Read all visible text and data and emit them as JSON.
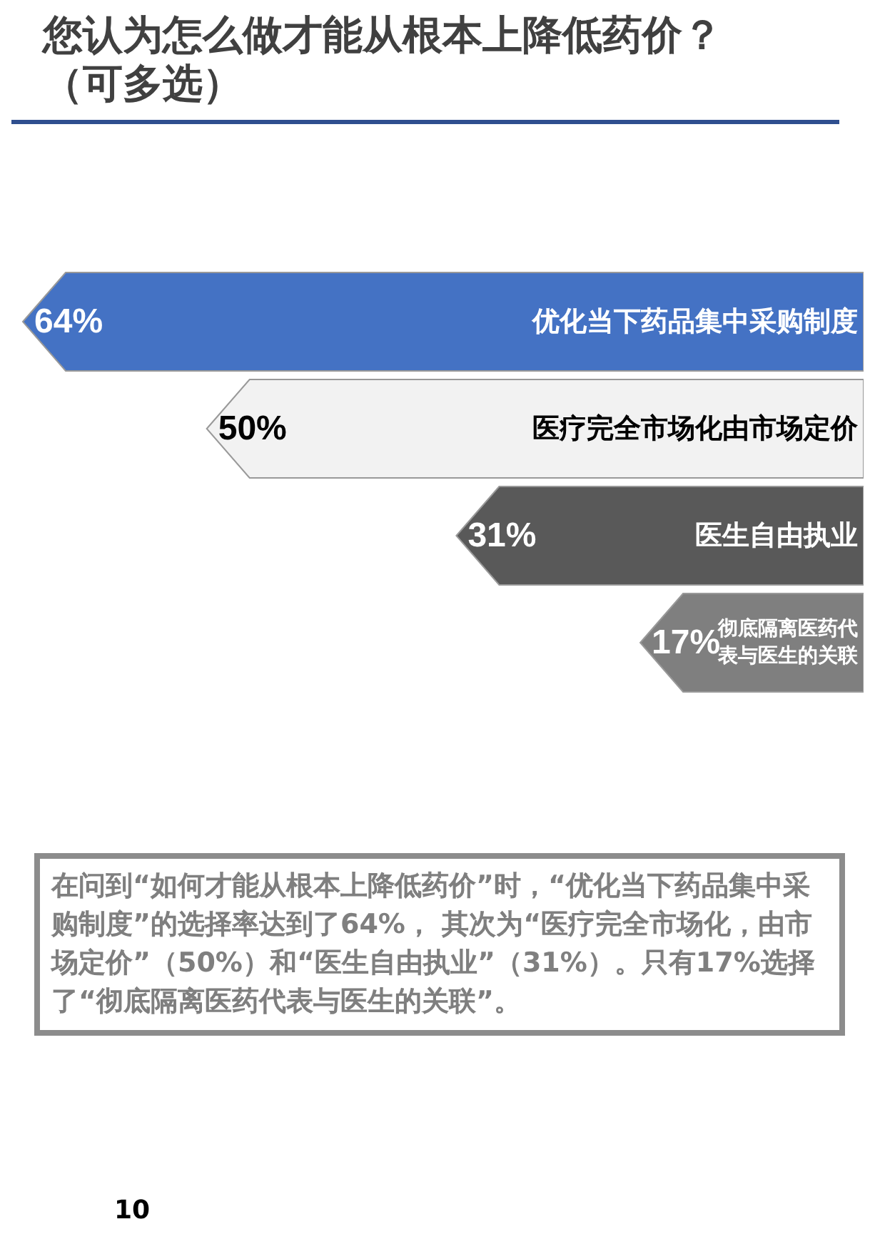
{
  "chart_data": {
    "type": "bar",
    "orientation": "horizontal",
    "title": "您认为怎么做才能从根本上降低药价？（可多选）",
    "categories": [
      "优化当下药品集中采购制度",
      "医疗完全市场化由市场定价",
      "医生自由执业",
      "彻底隔离医药代表与医生的关联"
    ],
    "values": [
      64,
      50,
      31,
      17
    ],
    "colors": [
      "#4472c4",
      "#f2f2f2",
      "#595959",
      "#7f7f7f"
    ],
    "value_labels": [
      "64%",
      "50%",
      "31%",
      "17%"
    ],
    "annotations": [
      "在问到“如何才能从根本上降低药价”时，“优化当下药品集中采购制度”的选择率达到了64%， 其次为“医疗完全市场化，由市场定价”（50%）和“医生自由执业”（31%）。只有17%选择了“彻底隔离医药代表与医生的关联”。",
      "10"
    ]
  }
}
